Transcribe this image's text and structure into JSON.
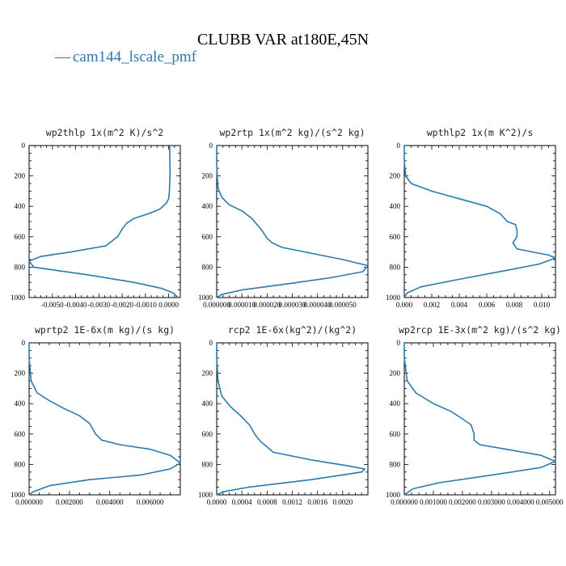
{
  "figure": {
    "title": "CLUBB VAR at180E,45N",
    "legend": {
      "label": "cam144_lscale_pmf",
      "line_glyph": "—",
      "color": "#2a7ab0"
    }
  },
  "chart_data": [
    {
      "type": "line",
      "title": "wp2thlp   1x(m^2 K)/s^2",
      "xlim": [
        -0.006,
        0.0005
      ],
      "ylim": [
        1000,
        0
      ],
      "xticks": [
        -0.005,
        -0.004,
        -0.003,
        -0.002,
        -0.001,
        0.0
      ],
      "xtick_labels": [
        "-0.0050",
        "-0.0040",
        "-0.0030",
        "-0.0020",
        "-0.0010",
        "0.0000"
      ],
      "yticks": [
        0,
        200,
        400,
        600,
        800,
        1000
      ],
      "ytick_labels": [
        "0",
        "200",
        "400",
        "600",
        "800",
        "1000"
      ],
      "series": [
        {
          "name": "cam144_lscale_pmf",
          "x": [
            4e-05,
            5e-05,
            6e-05,
            3e-05,
            0.0,
            -0.0001,
            -0.0004,
            -0.0009,
            -0.0015,
            -0.0018,
            -0.002,
            -0.0022,
            -0.0027,
            -0.0042,
            -0.0055,
            -0.006,
            -0.0058,
            -0.0035,
            -0.0015,
            -0.0003,
            0.0002,
            0.0004
          ],
          "y": [
            0,
            100,
            200,
            300,
            350,
            380,
            420,
            450,
            480,
            510,
            550,
            600,
            660,
            700,
            730,
            760,
            800,
            850,
            900,
            940,
            970,
            1000
          ]
        }
      ]
    },
    {
      "type": "line",
      "title": "wp2rtp   1x(m^2 kg)/(s^2 kg)",
      "xlim": [
        0.0,
        6e-05
      ],
      "ylim": [
        1000,
        0
      ],
      "xticks": [
        0.0,
        1e-05,
        2e-05,
        3e-05,
        4e-05,
        5e-05
      ],
      "xtick_labels": [
        "0.000000",
        "0.000010",
        "0.000020",
        "0.000030",
        "0.000040",
        "0.000050"
      ],
      "yticks": [
        0,
        200,
        400,
        600,
        800,
        1000
      ],
      "ytick_labels": [
        "0",
        "200",
        "400",
        "600",
        "800",
        "1000"
      ],
      "series": [
        {
          "name": "cam144_lscale_pmf",
          "x": [
            0.0,
            0.0,
            2e-07,
            5e-07,
            2e-06,
            5e-06,
            1e-05,
            1.4e-05,
            1.6e-05,
            1.8e-05,
            2e-05,
            2.2e-05,
            2.6e-05,
            3.8e-05,
            5e-05,
            6e-05,
            5.8e-05,
            4.5e-05,
            2.8e-05,
            1e-05,
            2e-06,
            0.0
          ],
          "y": [
            0,
            100,
            200,
            280,
            340,
            390,
            430,
            480,
            520,
            560,
            610,
            640,
            670,
            710,
            750,
            790,
            830,
            870,
            910,
            950,
            980,
            1000
          ]
        }
      ]
    },
    {
      "type": "line",
      "title": "wpthlp2   1x(m K^2)/s",
      "xlim": [
        0.0,
        0.011
      ],
      "ylim": [
        1000,
        0
      ],
      "xticks": [
        0.0,
        0.002,
        0.004,
        0.006,
        0.008,
        0.01
      ],
      "xtick_labels": [
        "0.000",
        "0.002",
        "0.004",
        "0.006",
        "0.008",
        "0.010"
      ],
      "yticks": [
        0,
        200,
        400,
        600,
        800,
        1000
      ],
      "ytick_labels": [
        "0",
        "200",
        "400",
        "600",
        "800",
        "1000"
      ],
      "series": [
        {
          "name": "cam144_lscale_pmf",
          "x": [
            0.0,
            0.0,
            0.0001,
            0.0005,
            0.002,
            0.004,
            0.006,
            0.007,
            0.0075,
            0.0081,
            0.0082,
            0.0082,
            0.0079,
            0.0082,
            0.0093,
            0.0105,
            0.011,
            0.0098,
            0.0075,
            0.004,
            0.0012,
            0.0002,
            0.0
          ],
          "y": [
            0,
            100,
            200,
            250,
            300,
            350,
            400,
            450,
            500,
            520,
            560,
            600,
            640,
            680,
            700,
            720,
            740,
            780,
            820,
            880,
            930,
            970,
            1000
          ]
        }
      ]
    },
    {
      "type": "line",
      "title": "wprtp2   1E-6x(m kg)/(s kg)",
      "xlim": [
        0.0,
        0.0075
      ],
      "ylim": [
        1000,
        0
      ],
      "xticks": [
        0.0,
        0.002,
        0.004,
        0.006
      ],
      "xtick_labels": [
        "0.000000",
        "0.002000",
        "0.004000",
        "0.006000"
      ],
      "yticks": [
        0,
        200,
        400,
        600,
        800,
        1000
      ],
      "ytick_labels": [
        "0",
        "200",
        "400",
        "600",
        "800",
        "1000"
      ],
      "series": [
        {
          "name": "cam144_lscale_pmf",
          "x": [
            0.0,
            0.0,
            0.0001,
            0.0004,
            0.001,
            0.0017,
            0.0025,
            0.003,
            0.0033,
            0.0036,
            0.0045,
            0.006,
            0.007,
            0.0075,
            0.007,
            0.0055,
            0.003,
            0.001,
            0.0002,
            0.0
          ],
          "y": [
            0,
            100,
            250,
            330,
            380,
            430,
            480,
            530,
            600,
            640,
            670,
            700,
            740,
            790,
            830,
            870,
            900,
            940,
            980,
            1000
          ]
        }
      ]
    },
    {
      "type": "line",
      "title": "rcp2   1E-6x(kg^2)/(kg^2)",
      "xlim": [
        0.0,
        0.0024
      ],
      "ylim": [
        1000,
        0
      ],
      "xticks": [
        0.0,
        0.0004,
        0.0008,
        0.0012,
        0.0016,
        0.002
      ],
      "xtick_labels": [
        "0.0000",
        "0.0004",
        "0.0008",
        "0.0012",
        "0.0016",
        "0.0020"
      ],
      "yticks": [
        0,
        200,
        400,
        600,
        800,
        1000
      ],
      "ytick_labels": [
        "0",
        "200",
        "400",
        "600",
        "800",
        "1000"
      ],
      "series": [
        {
          "name": "cam144_lscale_pmf",
          "x": [
            0.0,
            0.0,
            2e-05,
            8e-05,
            0.00022,
            0.00038,
            0.00052,
            0.00062,
            0.0007,
            0.0009,
            0.0015,
            0.0021,
            0.00235,
            0.0023,
            0.0015,
            0.0005,
            0.0001,
            0.0
          ],
          "y": [
            0,
            100,
            250,
            350,
            420,
            480,
            540,
            610,
            650,
            720,
            770,
            810,
            830,
            850,
            900,
            950,
            980,
            1000
          ]
        }
      ]
    },
    {
      "type": "line",
      "title": "wp2rcp   1E-3x(m^2 kg)/(s^2 kg)",
      "xlim": [
        0.0,
        0.0052
      ],
      "ylim": [
        1000,
        0
      ],
      "xticks": [
        0.0,
        0.001,
        0.002,
        0.003,
        0.004,
        0.005
      ],
      "xtick_labels": [
        "0.000000",
        "0.001000",
        "0.002000",
        "0.003000",
        "0.004000",
        "0.005000"
      ],
      "yticks": [
        0,
        200,
        400,
        600,
        800,
        1000
      ],
      "ytick_labels": [
        "0",
        "200",
        "400",
        "600",
        "800",
        "1000"
      ],
      "series": [
        {
          "name": "cam144_lscale_pmf",
          "x": [
            0.0,
            0.0,
            0.0001,
            0.0004,
            0.001,
            0.0016,
            0.002,
            0.0023,
            0.0024,
            0.0024,
            0.0026,
            0.0035,
            0.0047,
            0.0052,
            0.0047,
            0.003,
            0.0012,
            0.0003,
            0.0
          ],
          "y": [
            0,
            100,
            250,
            330,
            400,
            450,
            500,
            540,
            600,
            640,
            670,
            700,
            740,
            780,
            820,
            870,
            920,
            960,
            1000
          ]
        }
      ]
    }
  ]
}
